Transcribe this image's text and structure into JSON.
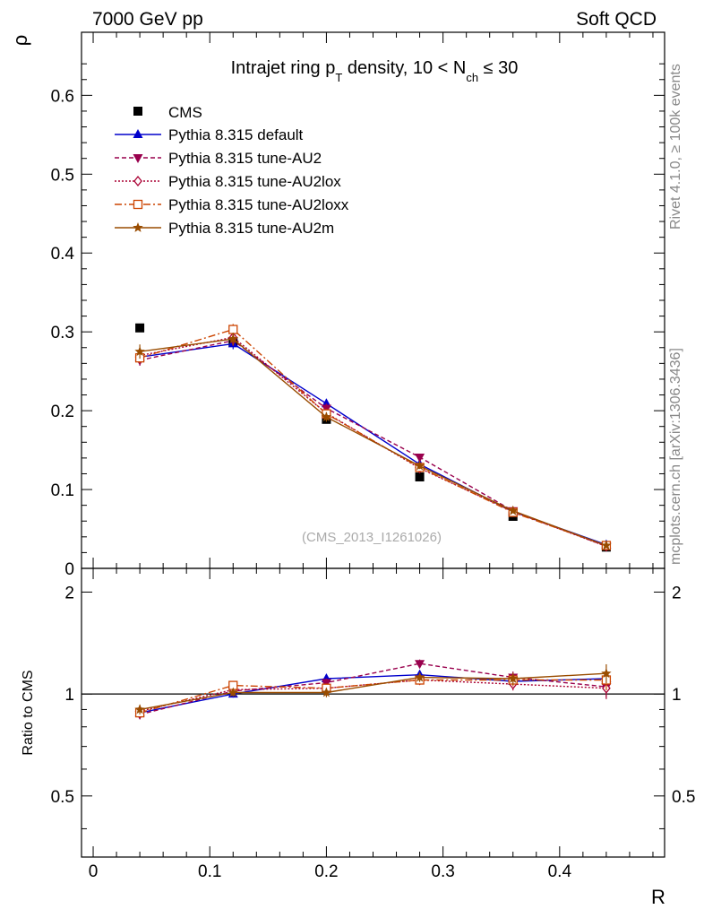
{
  "header": {
    "left": "7000 GeV pp",
    "right": "Soft QCD"
  },
  "side_text": {
    "rivet": "Rivet 4.1.0, ≥ 100k events",
    "mcplots": "mcplots.cern.ch [arXiv:1306.3436]"
  },
  "chart_data": {
    "type": "line",
    "title_parts": {
      "a": "Intrajet ring p",
      "a_sub": "T",
      "b": " density, 10 < N",
      "b_sub": "ch",
      "c": " ≤ 30"
    },
    "analysis_label": "(CMS_2013_I1261026)",
    "ylabel": "ρ",
    "xlabel": "R",
    "ratio_ylabel": "Ratio to CMS",
    "xlim": [
      -0.01,
      0.49
    ],
    "ylim": [
      0,
      0.68
    ],
    "ratio_ylim": [
      0.33,
      2.35
    ],
    "x_ticks": [
      {
        "value": 0,
        "label": "0"
      },
      {
        "value": 0.1,
        "label": "0.1"
      },
      {
        "value": 0.2,
        "label": "0.2"
      },
      {
        "value": 0.3,
        "label": "0.3"
      },
      {
        "value": 0.4,
        "label": "0.4"
      }
    ],
    "y_ticks": [
      {
        "value": 0,
        "label": "0"
      },
      {
        "value": 0.1,
        "label": "0.1"
      },
      {
        "value": 0.2,
        "label": "0.2"
      },
      {
        "value": 0.3,
        "label": "0.3"
      },
      {
        "value": 0.4,
        "label": "0.4"
      },
      {
        "value": 0.5,
        "label": "0.5"
      },
      {
        "value": 0.6,
        "label": "0.6"
      }
    ],
    "ratio_ticks": [
      {
        "value": 0.5,
        "label": "0.5"
      },
      {
        "value": 1,
        "label": "1"
      },
      {
        "value": 2,
        "label": "2"
      }
    ],
    "x": [
      0.04,
      0.12,
      0.2,
      0.28,
      0.36,
      0.44
    ],
    "data": {
      "name": "CMS",
      "values": [
        0.305,
        0.287,
        0.189,
        0.116,
        0.066,
        0.027
      ],
      "color": "#000000"
    },
    "series": [
      {
        "name": "Pythia 8.315 default",
        "color": "#0000cc",
        "dash": "",
        "marker": "triangle-up",
        "values": [
          0.268,
          0.285,
          0.209,
          0.132,
          0.072,
          0.03
        ],
        "err": [
          0.007,
          0.007,
          0.006,
          0.004,
          0.003,
          0.002
        ],
        "ratio": [
          0.88,
          1.0,
          1.11,
          1.14,
          1.09,
          1.11
        ]
      },
      {
        "name": "Pythia 8.315 tune-AU2",
        "color": "#99004d",
        "dash": "5,3",
        "marker": "triangle-down",
        "values": [
          0.264,
          0.289,
          0.203,
          0.141,
          0.073,
          0.028
        ],
        "err": [
          0.007,
          0.007,
          0.006,
          0.004,
          0.003,
          0.002
        ],
        "ratio": [
          0.87,
          1.02,
          1.08,
          1.23,
          1.12,
          1.05
        ]
      },
      {
        "name": "Pythia 8.315 tune-AU2lox",
        "color": "#aa0033",
        "dash": "2,2",
        "marker": "diamond",
        "values": [
          0.27,
          0.293,
          0.197,
          0.127,
          0.072,
          0.028
        ],
        "err": [
          0.007,
          0.007,
          0.006,
          0.004,
          0.003,
          0.002
        ],
        "ratio": [
          0.89,
          1.03,
          1.04,
          1.1,
          1.07,
          1.04
        ]
      },
      {
        "name": "Pythia 8.315 tune-AU2loxx",
        "color": "#cc4400",
        "dash": "8,3,2,3",
        "marker": "square",
        "values": [
          0.267,
          0.303,
          0.196,
          0.128,
          0.071,
          0.029
        ],
        "err": [
          0.007,
          0.007,
          0.006,
          0.004,
          0.003,
          0.002
        ],
        "ratio": [
          0.88,
          1.06,
          1.04,
          1.1,
          1.1,
          1.1
        ]
      },
      {
        "name": "Pythia 8.315 tune-AU2m",
        "color": "#994c00",
        "dash": "",
        "marker": "star",
        "values": [
          0.275,
          0.291,
          0.192,
          0.13,
          0.073,
          0.029
        ],
        "err": [
          0.009,
          0.008,
          0.006,
          0.004,
          0.003,
          0.002
        ],
        "ratio": [
          0.9,
          1.01,
          1.01,
          1.12,
          1.11,
          1.15
        ]
      }
    ]
  }
}
